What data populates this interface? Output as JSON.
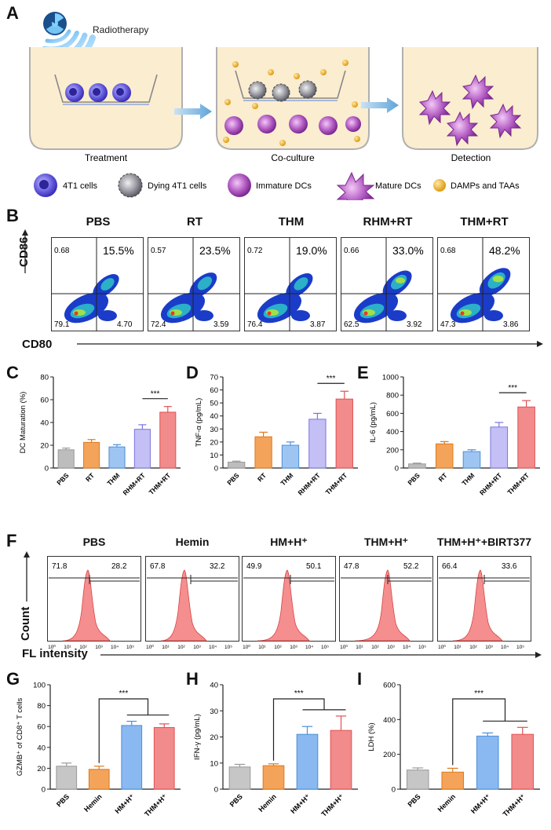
{
  "panels": {
    "A": "A",
    "B": "B",
    "C": "C",
    "D": "D",
    "E": "E",
    "F": "F",
    "G": "G",
    "H": "H",
    "I": "I"
  },
  "panelA": {
    "radiotherapy": "Radiotherapy",
    "steps": [
      "Treatment",
      "Co-culture",
      "Detection"
    ],
    "legend": [
      "4T1 cells",
      "Dying 4T1 cells",
      "Immature DCs",
      "Mature DCs",
      "DAMPs and TAAs"
    ]
  },
  "panelB": {
    "ylabel": "CD86",
    "xlabel": "CD80",
    "plots": [
      {
        "title": "PBS",
        "q1": "0.68",
        "q2": "15.5%",
        "q3": "79.1",
        "q4": "4.70"
      },
      {
        "title": "RT",
        "q1": "0.57",
        "q2": "23.5%",
        "q3": "72.4",
        "q4": "3.59"
      },
      {
        "title": "THM",
        "q1": "0.72",
        "q2": "19.0%",
        "q3": "76.4",
        "q4": "3.87"
      },
      {
        "title": "RHM+RT",
        "q1": "0.66",
        "q2": "33.0%",
        "q3": "62.5",
        "q4": "3.92"
      },
      {
        "title": "THM+RT",
        "q1": "0.68",
        "q2": "48.2%",
        "q3": "47.3",
        "q4": "3.86"
      }
    ]
  },
  "panelF": {
    "ylabel": "Count",
    "xlabel": "FL intensity",
    "plots": [
      {
        "title": "PBS",
        "left": "71.8",
        "right": "28.2"
      },
      {
        "title": "Hemin",
        "left": "67.8",
        "right": "32.2"
      },
      {
        "title": "HM+H⁺",
        "left": "49.9",
        "right": "50.1"
      },
      {
        "title": "THM+H⁺",
        "left": "47.8",
        "right": "52.2"
      },
      {
        "title": "THM+H⁺+BIRT377",
        "left": "66.4",
        "right": "33.6"
      }
    ]
  },
  "sig": "***",
  "chart_data": [
    {
      "id": "C",
      "type": "bar",
      "ylabel": "DC Maturation (%)",
      "ylim": [
        0,
        80
      ],
      "yticks": [
        0,
        20,
        40,
        60,
        80
      ],
      "categories": [
        "PBS",
        "RT",
        "THM",
        "RHM+RT",
        "THM+RT"
      ],
      "values": [
        16,
        22.5,
        18.5,
        34,
        49
      ],
      "errors": [
        1.5,
        2.5,
        2,
        4,
        5
      ],
      "colors": [
        "#bdbdbd",
        "#f4a35a",
        "#9ec5f2",
        "#c4c0f5",
        "#f28b8b"
      ],
      "edges": [
        "#999999",
        "#e0791a",
        "#4a90d9",
        "#7b74e0",
        "#e05252"
      ],
      "sig": [
        3,
        4
      ]
    },
    {
      "id": "D",
      "type": "bar",
      "ylabel": "TNF-α (pg/mL)",
      "ylim": [
        0,
        70
      ],
      "yticks": [
        0,
        10,
        20,
        30,
        40,
        50,
        60,
        70
      ],
      "categories": [
        "PBS",
        "RT",
        "THM",
        "RHM+RT",
        "THM+RT"
      ],
      "values": [
        4.5,
        24,
        17.5,
        37.5,
        53
      ],
      "errors": [
        0.8,
        3.5,
        2.5,
        4.5,
        6
      ],
      "colors": [
        "#bdbdbd",
        "#f4a35a",
        "#9ec5f2",
        "#c4c0f5",
        "#f28b8b"
      ],
      "edges": [
        "#999999",
        "#e0791a",
        "#4a90d9",
        "#7b74e0",
        "#e05252"
      ],
      "sig": [
        3,
        4
      ]
    },
    {
      "id": "E",
      "type": "bar",
      "ylabel": "IL-6 (pg/mL)",
      "ylim": [
        0,
        1000
      ],
      "yticks": [
        0,
        200,
        400,
        600,
        800,
        1000
      ],
      "categories": [
        "PBS",
        "RT",
        "THM",
        "RHM+RT",
        "THM+RT"
      ],
      "values": [
        45,
        265,
        180,
        450,
        670
      ],
      "errors": [
        8,
        25,
        20,
        50,
        70
      ],
      "colors": [
        "#bdbdbd",
        "#f4a35a",
        "#9ec5f2",
        "#c4c0f5",
        "#f28b8b"
      ],
      "edges": [
        "#999999",
        "#e0791a",
        "#4a90d9",
        "#7b74e0",
        "#e05252"
      ],
      "sig": [
        3,
        4
      ]
    },
    {
      "id": "G",
      "type": "bar",
      "ylabel": "GZMB⁺ of CD8⁺ T cells",
      "ylim": [
        0,
        100
      ],
      "yticks": [
        0,
        20,
        40,
        60,
        80,
        100
      ],
      "categories": [
        "PBS",
        "Hemin",
        "HM+H⁺",
        "THM+H⁺"
      ],
      "values": [
        22,
        19,
        61,
        59
      ],
      "errors": [
        3,
        3,
        4,
        3.5
      ],
      "colors": [
        "#c6c6c6",
        "#f4a35a",
        "#8ab8f0",
        "#f28b8b"
      ],
      "edges": [
        "#999999",
        "#e0791a",
        "#4a90d9",
        "#e05252"
      ],
      "sigGroup": true
    },
    {
      "id": "H",
      "type": "bar",
      "ylabel": "IFN-γ (pg/mL)",
      "ylim": [
        0,
        40
      ],
      "yticks": [
        0,
        10,
        20,
        30,
        40
      ],
      "categories": [
        "PBS",
        "Hemin",
        "HM+H⁺",
        "THM+H⁺"
      ],
      "values": [
        8.5,
        9,
        21,
        22.5
      ],
      "errors": [
        1,
        0.7,
        3,
        5.5
      ],
      "colors": [
        "#c6c6c6",
        "#f4a35a",
        "#8ab8f0",
        "#f28b8b"
      ],
      "edges": [
        "#999999",
        "#e0791a",
        "#4a90d9",
        "#e05252"
      ],
      "sigGroup": true
    },
    {
      "id": "I",
      "type": "bar",
      "ylabel": "LDH (%)",
      "ylim": [
        0,
        600
      ],
      "yticks": [
        0,
        200,
        400,
        600
      ],
      "categories": [
        "PBS",
        "Hemin",
        "HM+H⁺",
        "THM+H⁺"
      ],
      "values": [
        110,
        98,
        305,
        315
      ],
      "errors": [
        12,
        22,
        18,
        40
      ],
      "colors": [
        "#c6c6c6",
        "#f4a35a",
        "#8ab8f0",
        "#f28b8b"
      ],
      "edges": [
        "#999999",
        "#e0791a",
        "#4a90d9",
        "#e05252"
      ],
      "sigGroup": true
    }
  ]
}
